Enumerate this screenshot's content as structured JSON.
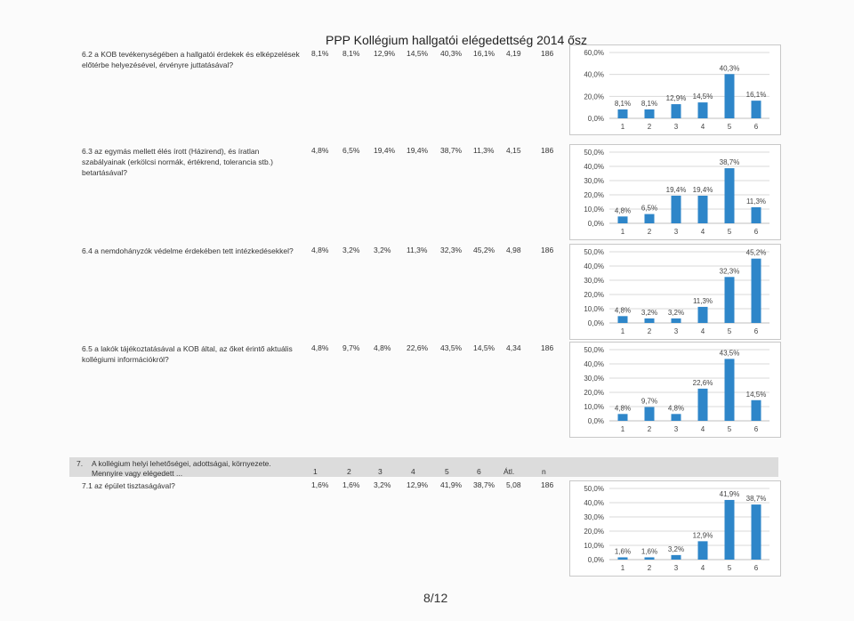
{
  "title": "PPP Kollégium hallgatói elégedettség 2014 ősz",
  "page_number": "8/12",
  "colors": {
    "bar": "#2e86c9",
    "grid": "#d9d9d9",
    "section_band": "#dcdcdc"
  },
  "section": {
    "number": "7.",
    "title": "A kollégium helyi lehetőségei, adottságai, környezete.",
    "subtitle": "Mennyire vagy elégedett ...",
    "columns": [
      "1",
      "2",
      "3",
      "4",
      "5",
      "6",
      "Átl.",
      "n"
    ]
  },
  "questions": [
    {
      "text": "6.2 a KOB tevékenységében a hallgatói érdekek és elképzelések előtérbe helyezésével, érvényre juttatásával?",
      "percents": [
        "8,1%",
        "8,1%",
        "12,9%",
        "14,5%",
        "40,3%",
        "16,1%"
      ],
      "avg": "4,19",
      "n": "186"
    },
    {
      "text": "6.3 az egymás mellett élés írott (Házirend), és íratlan szabályainak (erkölcsi normák, értékrend, tolerancia stb.) betartásával?",
      "percents": [
        "4,8%",
        "6,5%",
        "19,4%",
        "19,4%",
        "38,7%",
        "11,3%"
      ],
      "avg": "4,15",
      "n": "186"
    },
    {
      "text": "6.4 a nemdohányzók védelme érdekében tett intézkedésekkel?",
      "percents": [
        "4,8%",
        "3,2%",
        "3,2%",
        "11,3%",
        "32,3%",
        "45,2%"
      ],
      "avg": "4,98",
      "n": "186"
    },
    {
      "text": "6.5 a lakók tájékoztatásával a KOB által, az őket érintő aktuális kollégiumi információkról?",
      "percents": [
        "4,8%",
        "9,7%",
        "4,8%",
        "22,6%",
        "43,5%",
        "14,5%"
      ],
      "avg": "4,34",
      "n": "186"
    },
    {
      "text": "7.1 az épület tisztaságával?",
      "percents": [
        "1,6%",
        "1,6%",
        "3,2%",
        "12,9%",
        "41,9%",
        "38,7%"
      ],
      "avg": "5,08",
      "n": "186"
    }
  ],
  "chart_data": [
    {
      "type": "bar",
      "categories": [
        "1",
        "2",
        "3",
        "4",
        "5",
        "6"
      ],
      "values": [
        8.1,
        8.1,
        12.9,
        14.5,
        40.3,
        16.1
      ],
      "data_labels": [
        "8,1%",
        "8,1%",
        "12,9%",
        "14,5%",
        "40,3%",
        "16,1%"
      ],
      "ylim": [
        0,
        60
      ],
      "yticks": [
        "0,0%",
        "20,0%",
        "40,0%",
        "60,0%"
      ],
      "grid": true
    },
    {
      "type": "bar",
      "categories": [
        "1",
        "2",
        "3",
        "4",
        "5",
        "6"
      ],
      "values": [
        4.8,
        6.5,
        19.4,
        19.4,
        38.7,
        11.3
      ],
      "data_labels": [
        "4,8%",
        "6,5%",
        "19,4%",
        "19,4%",
        "38,7%",
        "11,3%"
      ],
      "ylim": [
        0,
        50
      ],
      "yticks": [
        "0,0%",
        "10,0%",
        "20,0%",
        "30,0%",
        "40,0%",
        "50,0%"
      ],
      "grid": true
    },
    {
      "type": "bar",
      "categories": [
        "1",
        "2",
        "3",
        "4",
        "5",
        "6"
      ],
      "values": [
        4.8,
        3.2,
        3.2,
        11.3,
        32.3,
        45.2
      ],
      "data_labels": [
        "4,8%",
        "3,2%",
        "3,2%",
        "11,3%",
        "32,3%",
        "45,2%"
      ],
      "ylim": [
        0,
        50
      ],
      "yticks": [
        "0,0%",
        "10,0%",
        "20,0%",
        "30,0%",
        "40,0%",
        "50,0%"
      ],
      "grid": true
    },
    {
      "type": "bar",
      "categories": [
        "1",
        "2",
        "3",
        "4",
        "5",
        "6"
      ],
      "values": [
        4.8,
        9.7,
        4.8,
        22.6,
        43.5,
        14.5
      ],
      "data_labels": [
        "4,8%",
        "9,7%",
        "4,8%",
        "22,6%",
        "43,5%",
        "14,5%"
      ],
      "ylim": [
        0,
        50
      ],
      "yticks": [
        "0,0%",
        "10,0%",
        "20,0%",
        "30,0%",
        "40,0%",
        "50,0%"
      ],
      "grid": true
    },
    {
      "type": "bar",
      "categories": [
        "1",
        "2",
        "3",
        "4",
        "5",
        "6"
      ],
      "values": [
        1.6,
        1.6,
        3.2,
        12.9,
        41.9,
        38.7
      ],
      "data_labels": [
        "1,6%",
        "1,6%",
        "3,2%",
        "12,9%",
        "41,9%",
        "38,7%"
      ],
      "ylim": [
        0,
        50
      ],
      "yticks": [
        "0,0%",
        "10,0%",
        "20,0%",
        "30,0%",
        "40,0%",
        "50,0%"
      ],
      "grid": true
    }
  ]
}
